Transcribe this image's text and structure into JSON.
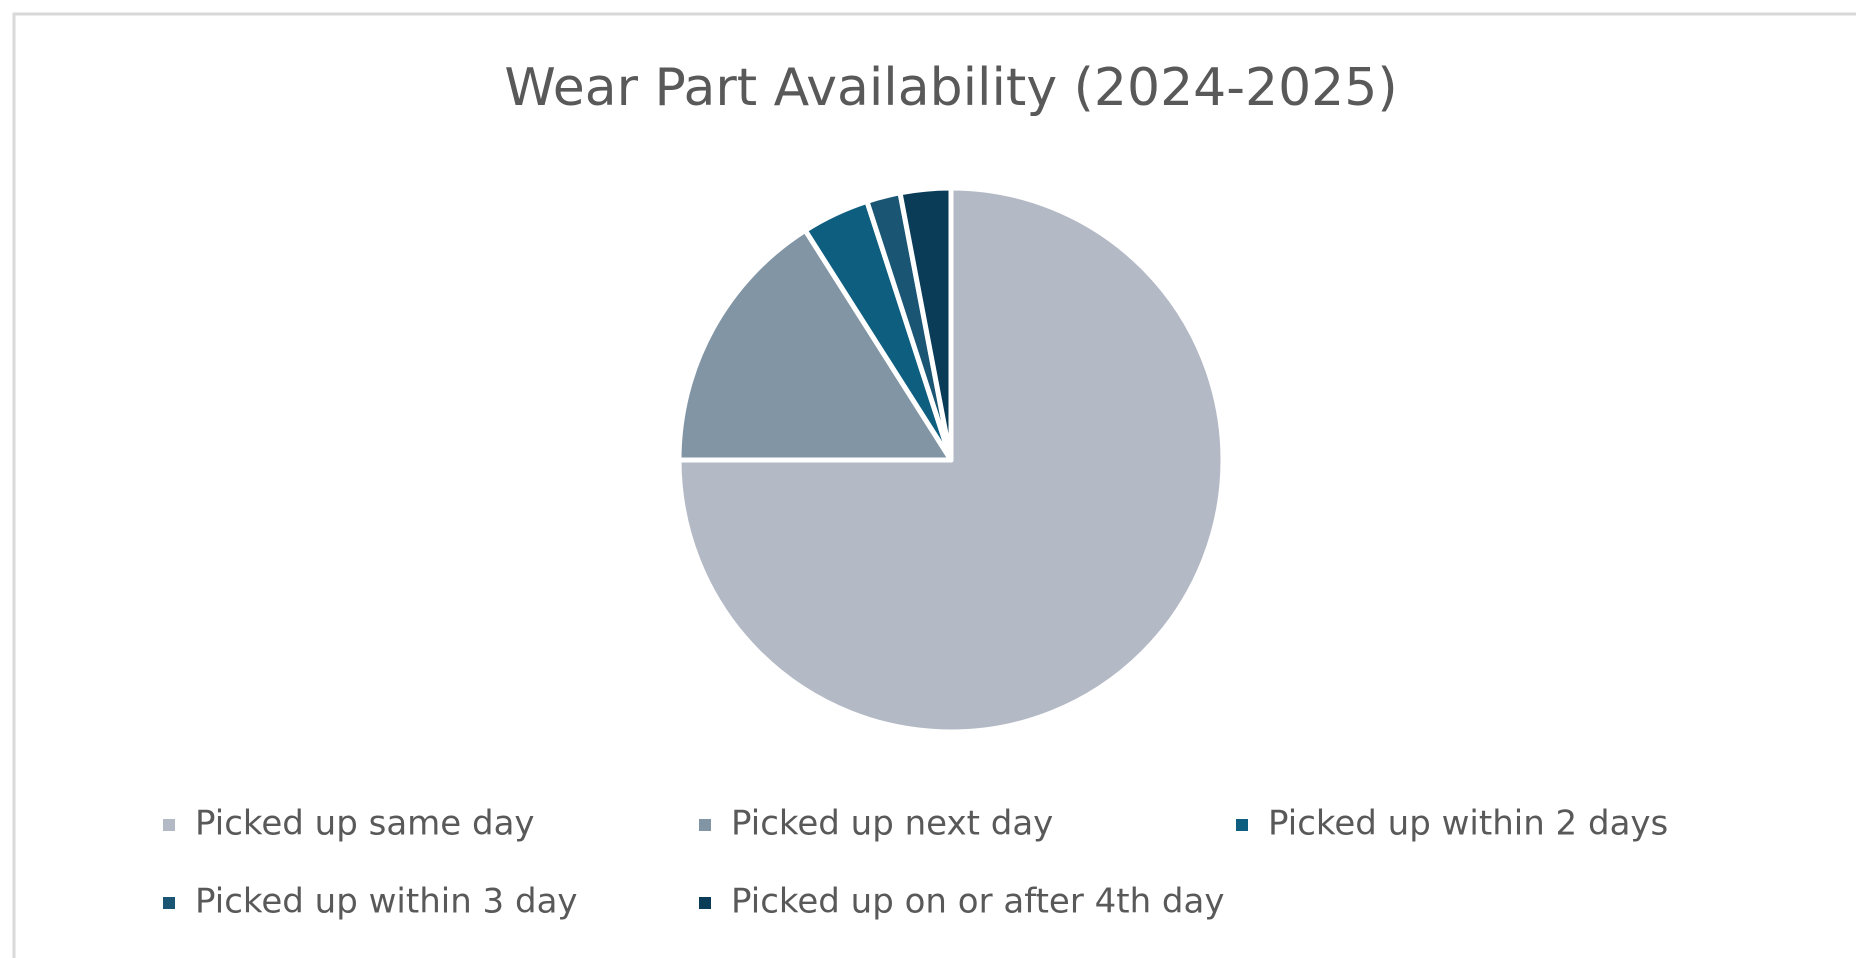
{
  "chart_data": {
    "type": "pie",
    "title": "Wear Part Availability (2024-2025)",
    "categories": [
      "Picked up same day",
      "Picked up next day",
      "Picked up within 2 days",
      "Picked up within 3 day",
      "Picked up on or after 4th day"
    ],
    "values": [
      75,
      16,
      4,
      2,
      3
    ],
    "colors": [
      "#b3b9c5",
      "#8195a5",
      "#0e5e80",
      "#1a5674",
      "#0a3c58"
    ],
    "legend": "bottom"
  }
}
